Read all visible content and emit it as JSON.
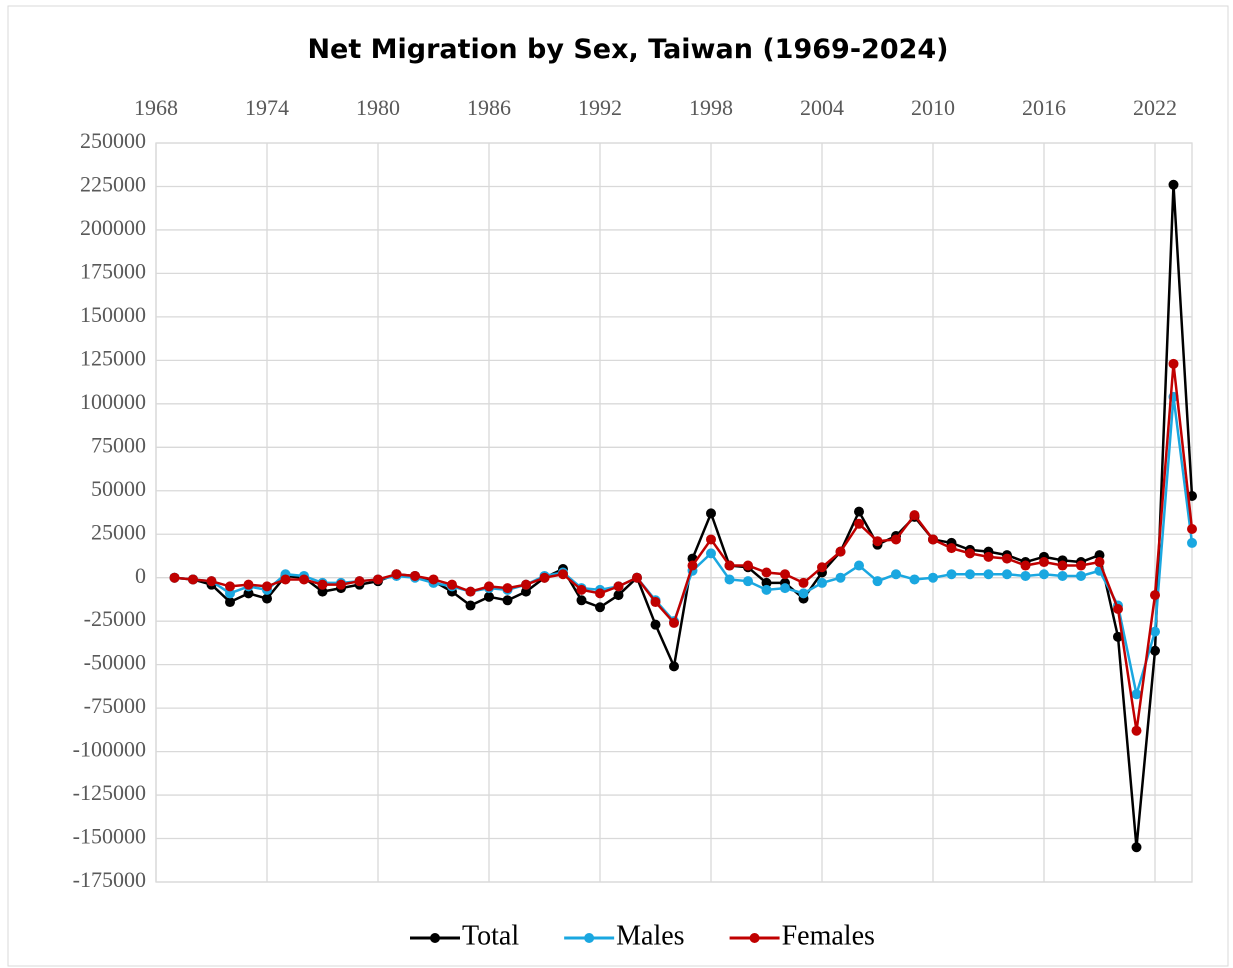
{
  "chart_data": {
    "type": "line",
    "title": "Net Migration by Sex, Taiwan (1969-2024)",
    "x": [
      1969,
      1970,
      1971,
      1972,
      1973,
      1974,
      1975,
      1976,
      1977,
      1978,
      1979,
      1980,
      1981,
      1982,
      1983,
      1984,
      1985,
      1986,
      1987,
      1988,
      1989,
      1990,
      1991,
      1992,
      1993,
      1994,
      1995,
      1996,
      1997,
      1998,
      1999,
      2000,
      2001,
      2002,
      2003,
      2004,
      2005,
      2006,
      2007,
      2008,
      2009,
      2010,
      2011,
      2012,
      2013,
      2014,
      2015,
      2016,
      2017,
      2018,
      2019,
      2020,
      2021,
      2022,
      2023,
      2024
    ],
    "series": [
      {
        "name": "Total",
        "color": "#000000",
        "values": [
          0,
          -1000,
          -4000,
          -14000,
          -9000,
          -12000,
          1000,
          0,
          -8000,
          -6000,
          -4000,
          -2000,
          2000,
          1000,
          -2000,
          -8000,
          -16000,
          -11000,
          -13000,
          -8000,
          0,
          5000,
          -13000,
          -17000,
          -10000,
          0,
          -27000,
          -51000,
          11000,
          37000,
          7000,
          6000,
          -3000,
          -3000,
          -12000,
          3000,
          15000,
          38000,
          19000,
          24000,
          35000,
          22000,
          20000,
          16000,
          15000,
          13000,
          9000,
          12000,
          10000,
          9000,
          13000,
          -34000,
          -155000,
          -42000,
          226000,
          47000
        ]
      },
      {
        "name": "Males",
        "color": "#1aa7e0",
        "values": [
          0,
          -1000,
          -2000,
          -9000,
          -5000,
          -7000,
          2000,
          1000,
          -3000,
          -3000,
          -2000,
          -1000,
          1000,
          0,
          -3000,
          -5000,
          -8000,
          -6000,
          -7000,
          -4000,
          1000,
          3000,
          -6000,
          -7000,
          -5000,
          0,
          -13000,
          -25000,
          4000,
          14000,
          -1000,
          -2000,
          -7000,
          -6000,
          -9000,
          -3000,
          0,
          7000,
          -2000,
          2000,
          -1000,
          0,
          2000,
          2000,
          2000,
          2000,
          1000,
          2000,
          1000,
          1000,
          4000,
          -16000,
          -67000,
          -31000,
          104000,
          20000
        ]
      },
      {
        "name": "Females",
        "color": "#c00000",
        "values": [
          0,
          -1000,
          -2000,
          -5000,
          -4000,
          -5000,
          -1000,
          -1000,
          -4000,
          -4000,
          -2000,
          -1000,
          2000,
          1000,
          -1000,
          -4000,
          -8000,
          -5000,
          -6000,
          -4000,
          0,
          2000,
          -7000,
          -9000,
          -5000,
          0,
          -14000,
          -26000,
          7000,
          22000,
          7000,
          7000,
          3000,
          2000,
          -3000,
          6000,
          15000,
          31000,
          21000,
          22000,
          36000,
          22000,
          17000,
          14000,
          12000,
          11000,
          7000,
          9000,
          7000,
          7000,
          9000,
          -18000,
          -88000,
          -10000,
          123000,
          28000
        ]
      }
    ],
    "xlim": [
      1968,
      2024
    ],
    "xticks": [
      1968,
      1974,
      1980,
      1986,
      1992,
      1998,
      2004,
      2010,
      2016,
      2022
    ],
    "ylim": [
      -175000,
      250000
    ],
    "yticks": [
      -175000,
      -150000,
      -125000,
      -100000,
      -75000,
      -50000,
      -25000,
      0,
      25000,
      50000,
      75000,
      100000,
      125000,
      150000,
      175000,
      200000,
      225000,
      250000
    ],
    "grid": true,
    "legend": "bottom"
  }
}
